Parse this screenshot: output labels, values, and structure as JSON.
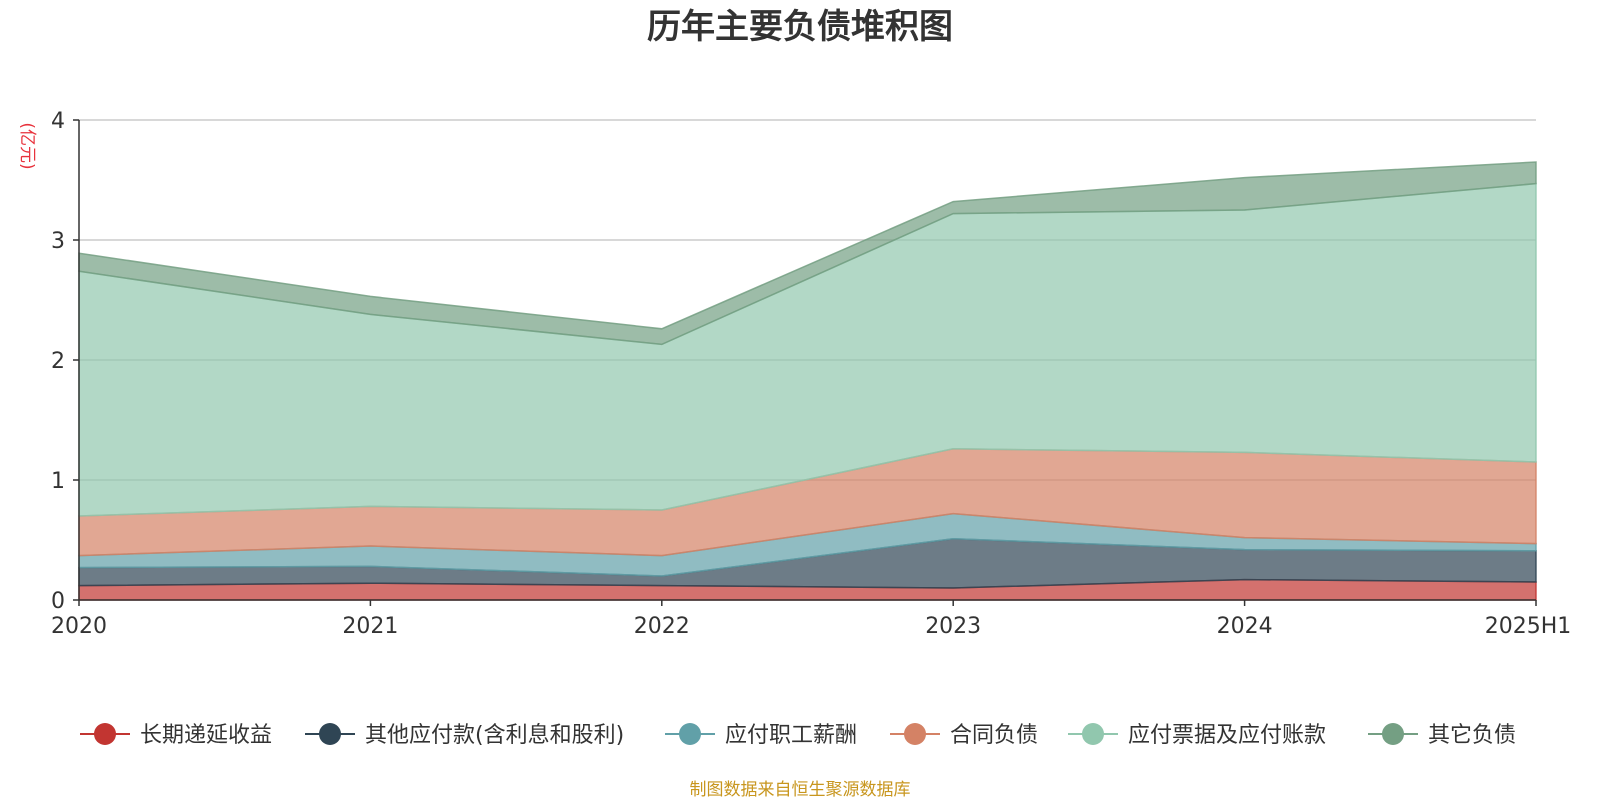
{
  "chart_data": {
    "type": "area",
    "stacked": true,
    "title": "历年主要负债堆积图",
    "unit_label": "(亿元)",
    "source_note": "制图数据来自恒生聚源数据库",
    "categories": [
      "2020",
      "2021",
      "2022",
      "2023",
      "2024",
      "2025H1"
    ],
    "ylim": [
      0,
      4
    ],
    "yticks": [
      "0",
      "1",
      "2",
      "3",
      "4"
    ],
    "grid": true,
    "legend_position": "bottom",
    "series": [
      {
        "name": "长期递延收益",
        "color": "#c23531",
        "values": [
          0.12,
          0.14,
          0.12,
          0.1,
          0.17,
          0.15
        ]
      },
      {
        "name": "其他应付款(含利息和股利)",
        "color": "#2f4554",
        "values": [
          0.15,
          0.14,
          0.08,
          0.41,
          0.25,
          0.26
        ]
      },
      {
        "name": "应付职工薪酬",
        "color": "#61a0a8",
        "values": [
          0.1,
          0.17,
          0.17,
          0.21,
          0.1,
          0.06
        ]
      },
      {
        "name": "合同负债",
        "color": "#d48265",
        "values": [
          0.33,
          0.33,
          0.38,
          0.54,
          0.71,
          0.68
        ]
      },
      {
        "name": "应付票据及应付账款",
        "color": "#91c7ae",
        "values": [
          2.04,
          1.6,
          1.38,
          1.96,
          2.02,
          2.32
        ]
      },
      {
        "name": "其它负债",
        "color": "#749f83",
        "values": [
          0.15,
          0.15,
          0.13,
          0.1,
          0.27,
          0.18
        ]
      }
    ]
  }
}
